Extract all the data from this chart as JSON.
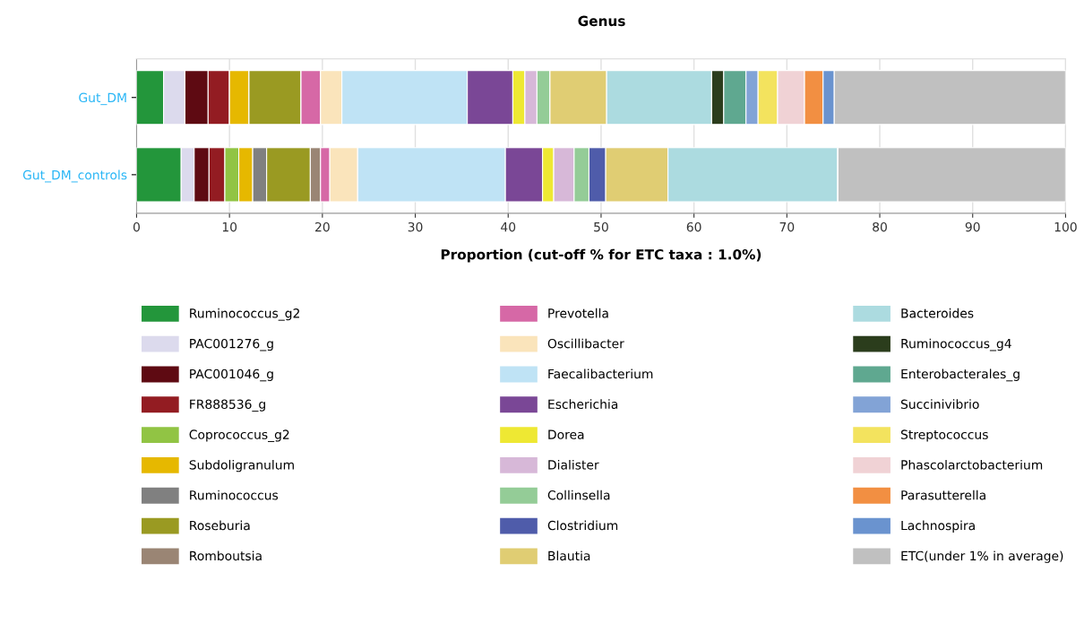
{
  "chart_data": {
    "type": "bar",
    "orientation": "horizontal",
    "stacked": true,
    "title": "Genus",
    "xlabel": "Proportion (cut-off % for ETC taxa : 1.0%)",
    "categories": [
      "Gut_DM",
      "Gut_DM_controls"
    ],
    "xlim": [
      0,
      100
    ],
    "xticks": [
      0,
      10,
      20,
      30,
      40,
      50,
      60,
      70,
      80,
      90,
      100
    ],
    "grid": "x",
    "legend": "bottom",
    "series": [
      {
        "name": "Ruminococcus_g2",
        "color": "#23963b",
        "values": [
          2.9,
          4.8
        ]
      },
      {
        "name": "PAC001276_g",
        "color": "#dcdaed",
        "values": [
          2.3,
          1.4
        ]
      },
      {
        "name": "PAC001046_g",
        "color": "#5e0a12",
        "values": [
          2.5,
          1.6
        ]
      },
      {
        "name": "FR888536_g",
        "color": "#931c22",
        "values": [
          2.3,
          1.7
        ]
      },
      {
        "name": "Coprococcus_g2",
        "color": "#91c444",
        "values": [
          0,
          1.5
        ]
      },
      {
        "name": "Subdoligranulum",
        "color": "#e6b800",
        "values": [
          2.1,
          1.5
        ]
      },
      {
        "name": "Ruminococcus",
        "color": "#808080",
        "values": [
          0,
          1.5
        ]
      },
      {
        "name": "Roseburia",
        "color": "#9a9a22",
        "values": [
          5.6,
          4.7
        ]
      },
      {
        "name": "Romboutsia",
        "color": "#9a8574",
        "values": [
          0,
          1.1
        ]
      },
      {
        "name": "Prevotella",
        "color": "#d668a6",
        "values": [
          2.1,
          1.0
        ]
      },
      {
        "name": "Oscillibacter",
        "color": "#fae4bb",
        "values": [
          2.3,
          3.0
        ]
      },
      {
        "name": "Faecalibacterium",
        "color": "#bfe3f5",
        "values": [
          13.5,
          15.9
        ]
      },
      {
        "name": "Escherichia",
        "color": "#7a4796",
        "values": [
          4.9,
          4.0
        ]
      },
      {
        "name": "Dorea",
        "color": "#eee833",
        "values": [
          1.3,
          1.2
        ]
      },
      {
        "name": "Dialister",
        "color": "#d7b8d8",
        "values": [
          1.3,
          2.2
        ]
      },
      {
        "name": "Collinsella",
        "color": "#94cc97",
        "values": [
          1.4,
          1.6
        ]
      },
      {
        "name": "Clostridium",
        "color": "#4f5caa",
        "values": [
          0,
          1.8
        ]
      },
      {
        "name": "Blautia",
        "color": "#e0cd73",
        "values": [
          6.1,
          6.7
        ]
      },
      {
        "name": "Bacteroides",
        "color": "#acdbe0",
        "values": [
          11.3,
          18.3
        ]
      },
      {
        "name": "Ruminococcus_g4",
        "color": "#2b3d1c",
        "values": [
          1.3,
          0
        ]
      },
      {
        "name": "Enterobacterales_g",
        "color": "#5fa890",
        "values": [
          2.4,
          0
        ]
      },
      {
        "name": "Succinivibrio",
        "color": "#82a3d6",
        "values": [
          1.3,
          0
        ]
      },
      {
        "name": "Streptococcus",
        "color": "#f3e35e",
        "values": [
          2.1,
          0
        ]
      },
      {
        "name": "Phascolarctobacterium",
        "color": "#f0d2d5",
        "values": [
          2.9,
          0
        ]
      },
      {
        "name": "Parasutterella",
        "color": "#f28f42",
        "values": [
          2.0,
          0
        ]
      },
      {
        "name": "Lachnospira",
        "color": "#6a93cf",
        "values": [
          1.2,
          0
        ]
      },
      {
        "name": "ETC(under 1% in average)",
        "color": "#c0c0c0",
        "values": [
          24.9,
          24.5
        ]
      }
    ]
  }
}
